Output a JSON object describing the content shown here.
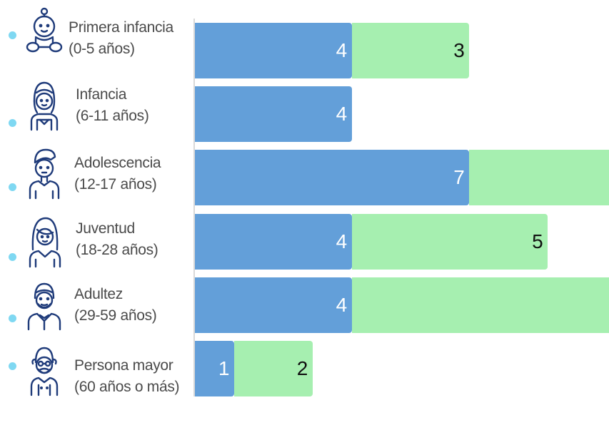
{
  "colors": {
    "series1": "#639fd9",
    "series2": "#a6efb0",
    "label1": "#ffffff",
    "label2": "#111111",
    "bullet": "#7fd8f2",
    "icon": "#1f3b7a"
  },
  "rows": [
    {
      "icon": "baby-icon",
      "label_line1": "Primera infancia",
      "label_line2": "(0-5 años)"
    },
    {
      "icon": "child-girl-icon",
      "label_line1": "Infancia",
      "label_line2": "(6-11 años)"
    },
    {
      "icon": "teen-boy-icon",
      "label_line1": "Adolescencia",
      "label_line2": "(12-17 años)"
    },
    {
      "icon": "young-woman-icon",
      "label_line1": "Juventud",
      "label_line2": "(18-28 años)"
    },
    {
      "icon": "adult-man-icon",
      "label_line1": "Adultez",
      "label_line2": "(29-59 años)"
    },
    {
      "icon": "elderly-man-icon",
      "label_line1": "Persona mayor",
      "label_line2": "(60 años o más)"
    }
  ],
  "chart_data": {
    "type": "bar",
    "orientation": "horizontal",
    "stacked": true,
    "categories": [
      "Primera infancia (0-5 años)",
      "Infancia (6-11 años)",
      "Adolescencia (12-17 años)",
      "Juventud (18-28 años)",
      "Adultez (29-59 años)",
      "Persona mayor (60 años o más)"
    ],
    "series": [
      {
        "values": [
          4,
          4,
          7,
          4,
          4,
          1
        ]
      },
      {
        "values": [
          3,
          0,
          4,
          5,
          7,
          2
        ]
      }
    ],
    "value_labels": [
      [
        "4",
        "4",
        "7",
        "4",
        "4",
        "1"
      ],
      [
        "3",
        "",
        "",
        "5",
        "",
        "2"
      ]
    ],
    "xlim": [
      0,
      10.7
    ],
    "legend": "none",
    "grid": false
  }
}
